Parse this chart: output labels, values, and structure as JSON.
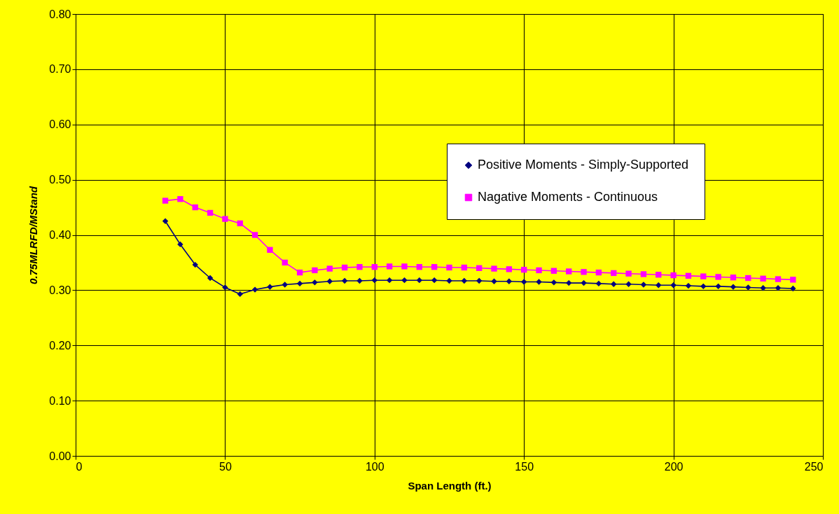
{
  "chart_data": {
    "type": "line",
    "xlabel": "Span Length (ft.)",
    "ylabel": "0.75MLRFD/MStand",
    "x": [
      30,
      35,
      40,
      45,
      50,
      55,
      60,
      65,
      70,
      75,
      80,
      85,
      90,
      95,
      100,
      105,
      110,
      115,
      120,
      125,
      130,
      135,
      140,
      145,
      150,
      155,
      160,
      165,
      170,
      175,
      180,
      185,
      190,
      195,
      200,
      205,
      210,
      215,
      220,
      225,
      230,
      235,
      240
    ],
    "series": [
      {
        "name": "Positive Moments - Simply-Supported",
        "color": "#000080",
        "marker": "diamond",
        "values": [
          0.425,
          0.383,
          0.346,
          0.322,
          0.305,
          0.293,
          0.301,
          0.306,
          0.31,
          0.312,
          0.314,
          0.316,
          0.317,
          0.317,
          0.318,
          0.318,
          0.318,
          0.318,
          0.318,
          0.317,
          0.317,
          0.317,
          0.316,
          0.316,
          0.315,
          0.315,
          0.314,
          0.313,
          0.313,
          0.312,
          0.311,
          0.311,
          0.31,
          0.309,
          0.309,
          0.308,
          0.307,
          0.307,
          0.306,
          0.305,
          0.304,
          0.304,
          0.303
        ]
      },
      {
        "name": "Nagative Moments - Continuous",
        "color": "#ff00ff",
        "marker": "square",
        "values": [
          0.462,
          0.465,
          0.45,
          0.44,
          0.429,
          0.421,
          0.4,
          0.373,
          0.35,
          0.332,
          0.336,
          0.339,
          0.341,
          0.342,
          0.342,
          0.343,
          0.343,
          0.342,
          0.342,
          0.341,
          0.341,
          0.34,
          0.339,
          0.338,
          0.337,
          0.336,
          0.335,
          0.334,
          0.333,
          0.332,
          0.331,
          0.33,
          0.329,
          0.328,
          0.327,
          0.326,
          0.325,
          0.324,
          0.323,
          0.322,
          0.321,
          0.32,
          0.319
        ]
      }
    ],
    "xlim": [
      0,
      250
    ],
    "xticks": [
      0,
      50,
      100,
      150,
      200,
      250
    ],
    "ylim": [
      0,
      0.8
    ],
    "yticks": [
      {
        "value": 0,
        "label": "0.00"
      },
      {
        "value": 0.1,
        "label": "0.10"
      },
      {
        "value": 0.2,
        "label": "0.20"
      },
      {
        "value": 0.3,
        "label": "0.30"
      },
      {
        "value": 0.4,
        "label": "0.40"
      },
      {
        "value": 0.5,
        "label": "0.50"
      },
      {
        "value": 0.6,
        "label": "0.60"
      },
      {
        "value": 0.7,
        "label": "0.70"
      },
      {
        "value": 0.8,
        "label": "0.80"
      }
    ],
    "grid": true,
    "legend": "right",
    "line_style": "solid"
  }
}
